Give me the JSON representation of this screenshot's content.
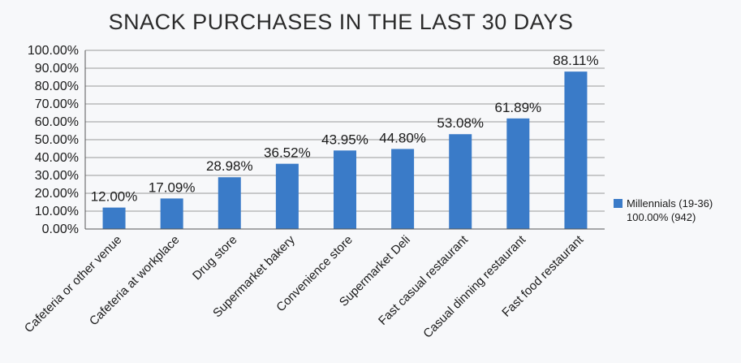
{
  "chart_data": {
    "type": "bar",
    "title": "SNACK PURCHASES IN THE LAST 30 DAYS",
    "xlabel": "",
    "ylabel": "",
    "ylim": [
      0,
      100
    ],
    "yticks": [
      "0.00%",
      "10.00%",
      "20.00%",
      "30.00%",
      "40.00%",
      "50.00%",
      "60.00%",
      "70.00%",
      "80.00%",
      "90.00%",
      "100.00%"
    ],
    "grid": true,
    "legend_position": "right",
    "categories": [
      "Cafeteria or other venue",
      "Cafeteria at workplace",
      "Drug store",
      "Supermarket bakery",
      "Convenience store",
      "Supermarket Deli",
      "Fast casual restaurant",
      "Casual dinning restaurant",
      "Fast food restaurant"
    ],
    "series": [
      {
        "name": "Millennials (19-36)",
        "subtitle": "100.00% (942)",
        "color": "#3a7bc8",
        "values": [
          12.0,
          17.09,
          28.98,
          36.52,
          43.95,
          44.8,
          53.08,
          61.89,
          88.11
        ],
        "labels": [
          "12.00%",
          "17.09%",
          "28.98%",
          "36.52%",
          "43.95%",
          "44.80%",
          "53.08%",
          "61.89%",
          "88.11%"
        ]
      }
    ]
  }
}
